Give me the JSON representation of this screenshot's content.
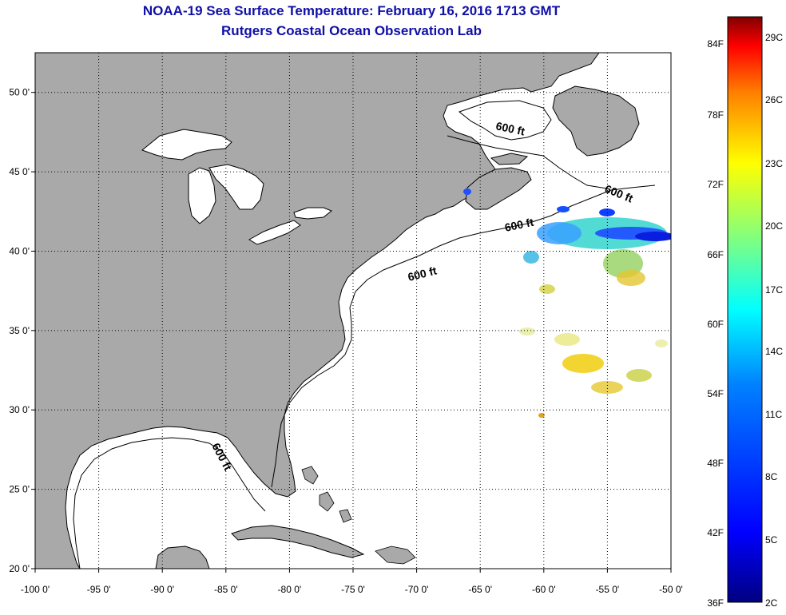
{
  "header": {
    "title": "NOAA-19 Sea Surface Temperature:  February 16, 2016 1713 GMT",
    "subtitle": "Rutgers Coastal Ocean Observation Lab"
  },
  "map": {
    "lon_range": [
      -100,
      -50
    ],
    "lat_range": [
      20,
      52.5
    ],
    "lon_ticks": [
      "-100 0'",
      "-95 0'",
      "-90 0'",
      "-85 0'",
      "-80 0'",
      "-75 0'",
      "-70 0'",
      "-65 0'",
      "-60 0'",
      "-55 0'",
      "-50 0'"
    ],
    "lat_ticks": [
      "50 0'",
      "45 0'",
      "40 0'",
      "35 0'",
      "30 0'",
      "25 0'",
      "20 0'"
    ],
    "isobath_label": "600 ft",
    "land_color": "#a9a9a9",
    "ocean_color": "#ffffff",
    "grid": true
  },
  "colorbar": {
    "f_labels": [
      "84F",
      "78F",
      "72F",
      "66F",
      "60F",
      "54F",
      "48F",
      "42F",
      "36F"
    ],
    "c_labels": [
      "29C",
      "26C",
      "23C",
      "20C",
      "17C",
      "14C",
      "11C",
      "8C",
      "5C",
      "2C"
    ],
    "colors": [
      "#800000",
      "#ff0000",
      "#ff8000",
      "#ffff00",
      "#80ff80",
      "#00ffff",
      "#0080ff",
      "#0000ff",
      "#000080"
    ]
  }
}
